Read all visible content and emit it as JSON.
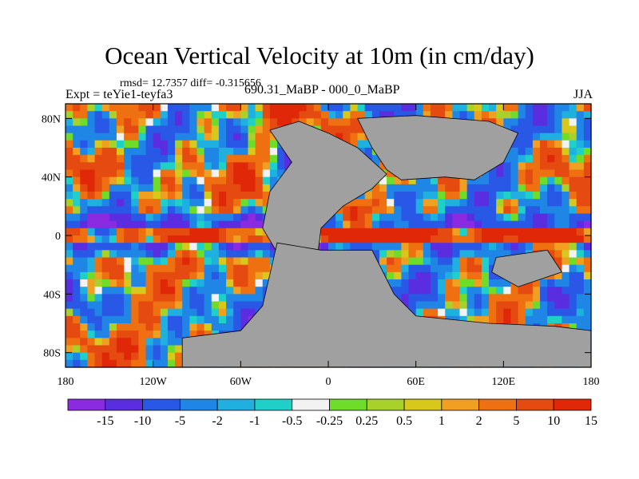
{
  "title": "Ocean Vertical Velocity at 10m (in cm/day)",
  "stats": "rmsd= 12.7357 diff= -0.315656",
  "expt_label": "Expt = teYie1-teyfa3",
  "period_label": "690.31_MaBP - 000_0_MaBP",
  "season": "JJA",
  "colors": {
    "land": "#a0a0a0",
    "bins": [
      "#8a2be2",
      "#5a2de0",
      "#2a58e6",
      "#1f86e6",
      "#1fb0e0",
      "#1fd0c8",
      "#f2f2f2",
      "#6edc28",
      "#a8d22a",
      "#d8c81c",
      "#f0a020",
      "#ee7010",
      "#e54a10",
      "#e02808"
    ]
  },
  "x_axis": {
    "ticks": [
      {
        "lon": -180,
        "label": "180"
      },
      {
        "lon": -120,
        "label": "120W"
      },
      {
        "lon": -60,
        "label": "60W"
      },
      {
        "lon": 0,
        "label": "0"
      },
      {
        "lon": 60,
        "label": "60E"
      },
      {
        "lon": 120,
        "label": "120E"
      },
      {
        "lon": 180,
        "label": "180"
      }
    ]
  },
  "y_axis": {
    "ticks": [
      {
        "lat": 80,
        "label": "80N"
      },
      {
        "lat": 40,
        "label": "40N"
      },
      {
        "lat": 0,
        "label": "0"
      },
      {
        "lat": -40,
        "label": "40S"
      },
      {
        "lat": -80,
        "label": "80S"
      }
    ]
  },
  "colorbar": {
    "labels": [
      "-15",
      "-10",
      "-5",
      "-2",
      "-1",
      "-0.5",
      "-0.25",
      "0.25",
      "0.5",
      "1",
      "2",
      "5",
      "10",
      "15"
    ]
  },
  "land_regions": [
    {
      "name": "africa-europe",
      "points": [
        [
          -40,
          72
        ],
        [
          -20,
          78
        ],
        [
          0,
          70
        ],
        [
          20,
          60
        ],
        [
          40,
          42
        ],
        [
          30,
          32
        ],
        [
          10,
          20
        ],
        [
          -5,
          5
        ],
        [
          -10,
          -35
        ],
        [
          -25,
          -40
        ],
        [
          -30,
          -20
        ],
        [
          -45,
          5
        ],
        [
          -40,
          30
        ],
        [
          -25,
          50
        ]
      ]
    },
    {
      "name": "asia",
      "points": [
        [
          20,
          80
        ],
        [
          60,
          82
        ],
        [
          110,
          78
        ],
        [
          130,
          70
        ],
        [
          120,
          50
        ],
        [
          100,
          38
        ],
        [
          80,
          40
        ],
        [
          50,
          38
        ],
        [
          40,
          45
        ],
        [
          30,
          60
        ]
      ]
    },
    {
      "name": "south-continent",
      "points": [
        [
          -35,
          -5
        ],
        [
          -5,
          -10
        ],
        [
          30,
          -10
        ],
        [
          45,
          -40
        ],
        [
          60,
          -55
        ],
        [
          110,
          -60
        ],
        [
          155,
          -62
        ],
        [
          180,
          -65
        ],
        [
          180,
          -90
        ],
        [
          -100,
          -90
        ],
        [
          -100,
          -70
        ],
        [
          -60,
          -65
        ],
        [
          -45,
          -48
        ]
      ]
    },
    {
      "name": "east-land",
      "points": [
        [
          115,
          -15
        ],
        [
          150,
          -10
        ],
        [
          160,
          -25
        ],
        [
          130,
          -35
        ],
        [
          112,
          -25
        ]
      ]
    }
  ]
}
